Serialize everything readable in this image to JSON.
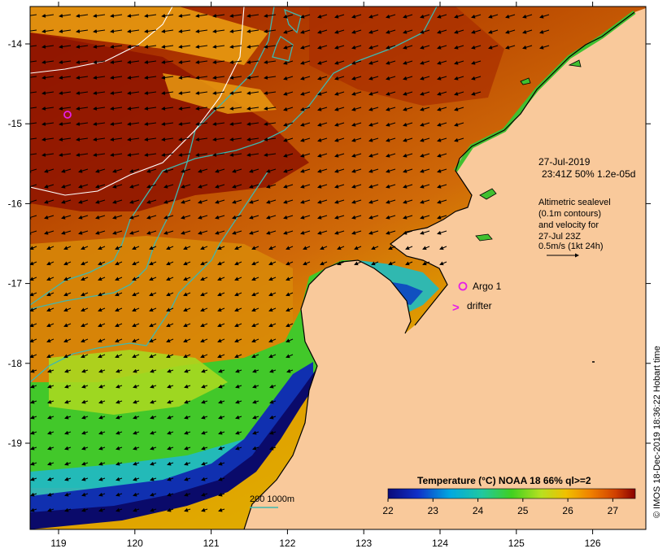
{
  "axes": {
    "lon_ticks": [
      "119",
      "120",
      "121",
      "122",
      "123",
      "124",
      "125",
      "126"
    ],
    "lat_ticks": [
      "-14",
      "-15",
      "-16",
      "-17",
      "-18",
      "-19"
    ]
  },
  "info": {
    "date": "27-Jul-2019",
    "time_line": "23:41Z  50% 1.2e-05d",
    "alt_line1": "Altimetric sealevel",
    "alt_line2": "(0.1m contours)",
    "alt_line3": "and velocity for",
    "alt_line4": "27-Jul 23Z",
    "alt_line5": "0.5m/s (1kt 24h)"
  },
  "markers": {
    "argo_label": "Argo 1",
    "drifter_label": "drifter",
    "drifter_symbol": ">"
  },
  "bathymetry_legend": "200  1000m",
  "colorbar": {
    "title": "Temperature (°C) NOAA 18 66% ql>=2",
    "tick_labels": [
      "22",
      "23",
      "24",
      "25",
      "26",
      "27"
    ],
    "min": 22,
    "max": 27.5
  },
  "credit": "© IMOS 18-Dec-2019 18:36:22 Hobart time",
  "colors": {
    "land": "#f9c99b",
    "cold": "#0a1a8c",
    "mid": "#3fcf2f",
    "warm": "#c95c0a",
    "hot": "#8a1200",
    "contour_bathy": "#3fb8b0",
    "contour_sea": "#ffffff",
    "marker": "#e61ee6"
  }
}
